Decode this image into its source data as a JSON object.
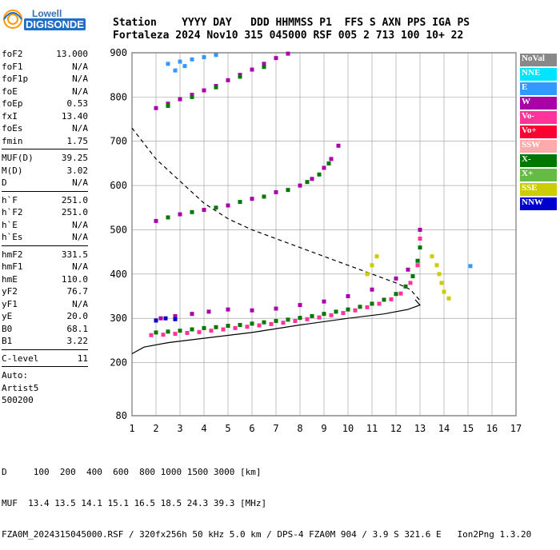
{
  "logo": {
    "line1": "Lowell",
    "line2": "DIGISONDE"
  },
  "header": {
    "line1": "Station    YYYY DAY   DDD HHMMSS P1  FFS S AXN PPS IGA PS",
    "line2": "Fortaleza 2024 Nov10 315 045000 RSF 005 2 713 100 10+ 22"
  },
  "params": {
    "group1": [
      {
        "label": "foF2",
        "value": "13.000"
      },
      {
        "label": "foF1",
        "value": "N/A"
      },
      {
        "label": "foF1p",
        "value": "N/A"
      },
      {
        "label": "foE",
        "value": "N/A"
      },
      {
        "label": "foEp",
        "value": "0.53"
      },
      {
        "label": "fxI",
        "value": "13.40"
      },
      {
        "label": "foEs",
        "value": "N/A"
      },
      {
        "label": "fmin",
        "value": "1.75"
      }
    ],
    "group2": [
      {
        "label": "MUF(D)",
        "value": "39.25"
      },
      {
        "label": "M(D)",
        "value": "3.02"
      },
      {
        "label": "D",
        "value": "N/A"
      }
    ],
    "group3": [
      {
        "label": "h`F",
        "value": "251.0"
      },
      {
        "label": "h`F2",
        "value": "251.0"
      },
      {
        "label": "h`E",
        "value": "N/A"
      },
      {
        "label": "h`Es",
        "value": "N/A"
      }
    ],
    "group4": [
      {
        "label": "hmF2",
        "value": "331.5"
      },
      {
        "label": "hmF1",
        "value": "N/A"
      },
      {
        "label": "hmE",
        "value": "110.0"
      },
      {
        "label": "yF2",
        "value": "76.7"
      },
      {
        "label": "yF1",
        "value": "N/A"
      },
      {
        "label": "yE",
        "value": "20.0"
      },
      {
        "label": "B0",
        "value": "68.1"
      },
      {
        "label": "B1",
        "value": "3.22"
      }
    ],
    "group5": [
      {
        "label": "C-level",
        "value": "11"
      }
    ],
    "auto": [
      "Auto:",
      "Artist5",
      "500200"
    ]
  },
  "legend": [
    {
      "label": "NoVal",
      "color": "#888888"
    },
    {
      "label": "NNE",
      "color": "#00e5ff"
    },
    {
      "label": "E",
      "color": "#3399ff"
    },
    {
      "label": "W",
      "color": "#aa00aa"
    },
    {
      "label": "Vo-",
      "color": "#ff3399"
    },
    {
      "label": "Vo+",
      "color": "#ff0033"
    },
    {
      "label": "SSW",
      "color": "#ffaaaa"
    },
    {
      "label": "X-",
      "color": "#007700"
    },
    {
      "label": "X+",
      "color": "#66bb44"
    },
    {
      "label": "SSE",
      "color": "#cccc00"
    },
    {
      "label": "NNW",
      "color": "#0000cc"
    }
  ],
  "bottom": {
    "line1": "D     100  200  400  600  800 1000 1500 3000 [km]",
    "line2": "MUF  13.4 13.5 14.1 15.1 16.5 18.5 24.3 39.3 [MHz]",
    "line3": "FZA0M_2024315045000.RSF / 320fx256h 50 kHz 5.0 km / DPS-4 FZA0M 904 / 3.9 S 321.6 E   Ion2Png 1.3.20"
  },
  "chart_data": {
    "type": "scatter",
    "title": "",
    "xlabel": "",
    "ylabel": "",
    "xlim": [
      1,
      17
    ],
    "ylim": [
      80,
      900
    ],
    "x_ticks": [
      1,
      2,
      3,
      4,
      5,
      6,
      7,
      8,
      9,
      10,
      11,
      12,
      13,
      14,
      15,
      16,
      17
    ],
    "y_ticks": [
      80,
      200,
      300,
      400,
      500,
      600,
      700,
      800,
      900
    ],
    "grid": true,
    "curves": [
      {
        "name": "profile",
        "style": "solid",
        "points": [
          [
            1.0,
            220
          ],
          [
            1.5,
            235
          ],
          [
            2.5,
            245
          ],
          [
            4,
            255
          ],
          [
            6,
            268
          ],
          [
            8,
            285
          ],
          [
            10,
            300
          ],
          [
            11.5,
            310
          ],
          [
            12.5,
            320
          ],
          [
            13,
            330
          ],
          [
            12.8,
            342
          ]
        ]
      },
      {
        "name": "moduf",
        "style": "dashed",
        "points": [
          [
            1.0,
            730
          ],
          [
            2,
            660
          ],
          [
            3,
            610
          ],
          [
            4,
            560
          ],
          [
            5,
            525
          ],
          [
            6,
            500
          ],
          [
            7,
            480
          ],
          [
            8,
            460
          ],
          [
            9,
            440
          ],
          [
            10,
            420
          ],
          [
            11,
            400
          ],
          [
            12,
            380
          ],
          [
            12.6,
            365
          ],
          [
            13,
            340
          ]
        ]
      }
    ],
    "traces": [
      {
        "name": "X-",
        "color": "#007700",
        "points": [
          [
            2,
            268
          ],
          [
            2.5,
            270
          ],
          [
            3,
            272
          ],
          [
            3.5,
            275
          ],
          [
            4,
            278
          ],
          [
            4.5,
            280
          ],
          [
            5,
            283
          ],
          [
            5.5,
            285
          ],
          [
            6,
            288
          ],
          [
            6.5,
            291
          ],
          [
            7,
            294
          ],
          [
            7.5,
            297
          ],
          [
            8,
            301
          ],
          [
            8.5,
            305
          ],
          [
            9,
            310
          ],
          [
            9.5,
            315
          ],
          [
            10,
            320
          ],
          [
            10.5,
            326
          ],
          [
            11,
            333
          ],
          [
            11.5,
            342
          ],
          [
            12,
            355
          ],
          [
            12.4,
            372
          ],
          [
            12.7,
            395
          ],
          [
            12.9,
            430
          ],
          [
            13,
            460
          ]
        ]
      },
      {
        "name": "Vo-",
        "color": "#ff3399",
        "points": [
          [
            1.8,
            262
          ],
          [
            2.3,
            263
          ],
          [
            2.8,
            265
          ],
          [
            3.3,
            267
          ],
          [
            3.8,
            269
          ],
          [
            4.3,
            272
          ],
          [
            4.8,
            275
          ],
          [
            5.3,
            278
          ],
          [
            5.8,
            281
          ],
          [
            6.3,
            284
          ],
          [
            6.8,
            287
          ],
          [
            7.3,
            290
          ],
          [
            7.8,
            294
          ],
          [
            8.3,
            298
          ],
          [
            8.8,
            302
          ],
          [
            9.3,
            307
          ],
          [
            9.8,
            312
          ],
          [
            10.3,
            318
          ],
          [
            10.8,
            325
          ],
          [
            11.3,
            333
          ],
          [
            11.8,
            343
          ],
          [
            12.2,
            356
          ],
          [
            12.6,
            380
          ],
          [
            12.9,
            420
          ],
          [
            13,
            480
          ]
        ]
      },
      {
        "name": "W",
        "color": "#aa00aa",
        "points": [
          [
            2.2,
            300
          ],
          [
            2.8,
            305
          ],
          [
            3.5,
            310
          ],
          [
            4.2,
            315
          ],
          [
            5,
            320
          ],
          [
            6,
            318
          ],
          [
            7,
            322
          ],
          [
            8,
            330
          ],
          [
            9,
            338
          ],
          [
            10,
            350
          ],
          [
            11,
            365
          ],
          [
            12,
            390
          ],
          [
            12.5,
            410
          ],
          [
            13,
            500
          ]
        ]
      },
      {
        "name": "W-echo2",
        "color": "#aa00aa",
        "points": [
          [
            2,
            520
          ],
          [
            3,
            535
          ],
          [
            4,
            545
          ],
          [
            5,
            555
          ],
          [
            6,
            570
          ],
          [
            7,
            585
          ],
          [
            8,
            600
          ],
          [
            8.5,
            615
          ],
          [
            9,
            640
          ],
          [
            9.3,
            660
          ],
          [
            9.6,
            690
          ]
        ]
      },
      {
        "name": "X-echo2",
        "color": "#007700",
        "points": [
          [
            2.5,
            528
          ],
          [
            3.5,
            540
          ],
          [
            4.5,
            550
          ],
          [
            5.5,
            563
          ],
          [
            6.5,
            575
          ],
          [
            7.5,
            590
          ],
          [
            8.3,
            608
          ],
          [
            8.8,
            625
          ],
          [
            9.2,
            650
          ]
        ]
      },
      {
        "name": "W-echo3",
        "color": "#aa00aa",
        "points": [
          [
            2,
            775
          ],
          [
            2.5,
            785
          ],
          [
            3,
            795
          ],
          [
            3.5,
            805
          ],
          [
            4,
            815
          ],
          [
            4.5,
            825
          ],
          [
            5,
            838
          ],
          [
            5.5,
            850
          ],
          [
            6,
            862
          ],
          [
            6.5,
            875
          ],
          [
            7,
            888
          ],
          [
            7.5,
            898
          ]
        ]
      },
      {
        "name": "X-echo3",
        "color": "#007700",
        "points": [
          [
            2.5,
            780
          ],
          [
            3.5,
            800
          ],
          [
            4.5,
            822
          ],
          [
            5.5,
            846
          ],
          [
            6.5,
            868
          ]
        ]
      },
      {
        "name": "E",
        "color": "#3399ff",
        "points": [
          [
            2.5,
            875
          ],
          [
            3,
            880
          ],
          [
            3.5,
            885
          ],
          [
            4,
            890
          ],
          [
            4.5,
            895
          ],
          [
            2.8,
            860
          ],
          [
            3.2,
            870
          ]
        ]
      },
      {
        "name": "SSE",
        "color": "#cccc00",
        "points": [
          [
            10.8,
            400
          ],
          [
            11,
            420
          ],
          [
            11.2,
            440
          ],
          [
            13.5,
            440
          ],
          [
            13.7,
            420
          ],
          [
            13.8,
            400
          ],
          [
            13.9,
            380
          ],
          [
            14,
            360
          ],
          [
            14.2,
            345
          ]
        ]
      },
      {
        "name": "NNW",
        "color": "#0000cc",
        "points": [
          [
            2,
            295
          ],
          [
            2.4,
            300
          ],
          [
            2.8,
            298
          ]
        ]
      },
      {
        "name": "E-far",
        "color": "#3399ff",
        "points": [
          [
            15.1,
            418
          ]
        ]
      }
    ]
  }
}
